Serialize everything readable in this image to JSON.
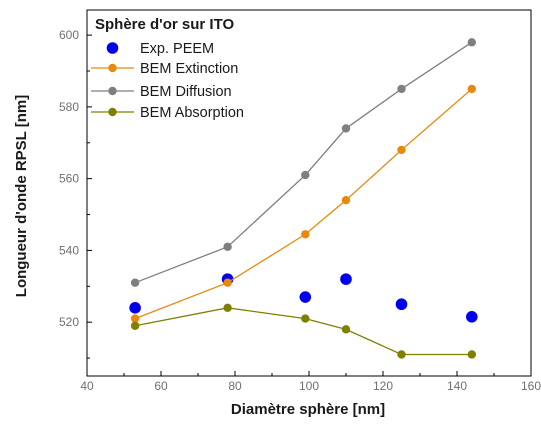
{
  "chart_data": {
    "type": "line",
    "title": "",
    "xlabel": "Diamètre sphère [nm]",
    "ylabel": "Longueur d'onde RPSL [nm]",
    "xlim": [
      40,
      160
    ],
    "ylim": [
      505,
      607
    ],
    "xticks": [
      40,
      60,
      80,
      100,
      120,
      140,
      160
    ],
    "yticks": [
      520,
      540,
      560,
      580,
      600
    ],
    "grid": false,
    "legend_title": "Sphère d'or sur ITO",
    "legend_position": "top-left",
    "series": [
      {
        "name": "Exp. PEEM",
        "kind": "scatter",
        "color": "#0000ee",
        "x": [
          53,
          78,
          99,
          110,
          125,
          144
        ],
        "y": [
          524,
          532,
          527,
          532,
          525,
          521.5
        ]
      },
      {
        "name": "BEM Extinction",
        "kind": "line",
        "color": "#e8890c",
        "x": [
          53,
          78,
          99,
          110,
          125,
          144
        ],
        "y": [
          521,
          531,
          544.5,
          554,
          568,
          585
        ]
      },
      {
        "name": "BEM Diffusion",
        "kind": "line",
        "color": "#7f7f7f",
        "x": [
          53,
          78,
          99,
          110,
          125,
          144
        ],
        "y": [
          531,
          541,
          561,
          574,
          585,
          598
        ]
      },
      {
        "name": "BEM Absorption",
        "kind": "line",
        "color": "#808000",
        "x": [
          53,
          78,
          99,
          110,
          125,
          144
        ],
        "y": [
          519,
          524,
          521,
          518,
          511,
          511
        ]
      }
    ]
  }
}
